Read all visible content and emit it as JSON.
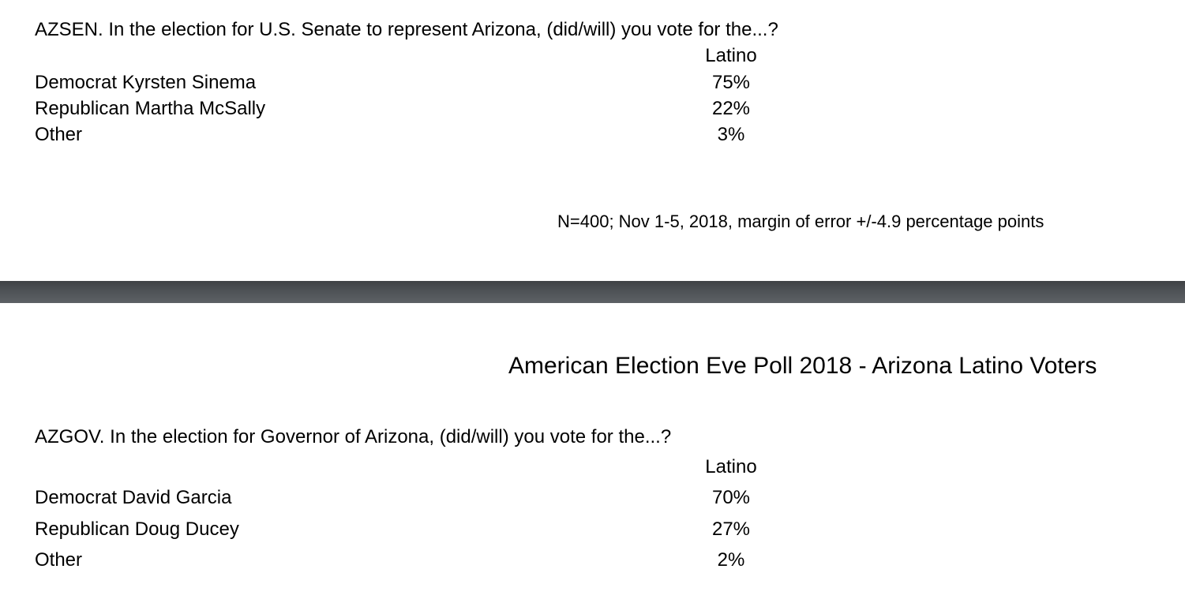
{
  "senate": {
    "question": "AZSEN. In the election for U.S. Senate to represent Arizona, (did/will) you vote for the...?",
    "column_header": "Latino",
    "rows": [
      {
        "label": "Democrat Kyrsten Sinema",
        "value": "75%"
      },
      {
        "label": "Republican Martha McSally",
        "value": "22%"
      },
      {
        "label": "Other",
        "value": "3%"
      }
    ],
    "note": "N=400; Nov 1-5, 2018, margin of error +/-4.9 percentage points"
  },
  "page_header": {
    "title": "American Election Eve Poll 2018 - Arizona Latino Voters"
  },
  "governor": {
    "question": "AZGOV. In the election for Governor of Arizona, (did/will) you vote for the...?",
    "column_header": "Latino",
    "rows": [
      {
        "label": "Democrat David Garcia",
        "value": "70%"
      },
      {
        "label": "Republican Doug Ducey",
        "value": "27%"
      },
      {
        "label": "Other",
        "value": "2%"
      }
    ]
  },
  "colors": {
    "divider": "#4e5256",
    "background": "#ffffff",
    "text": "#000000"
  }
}
